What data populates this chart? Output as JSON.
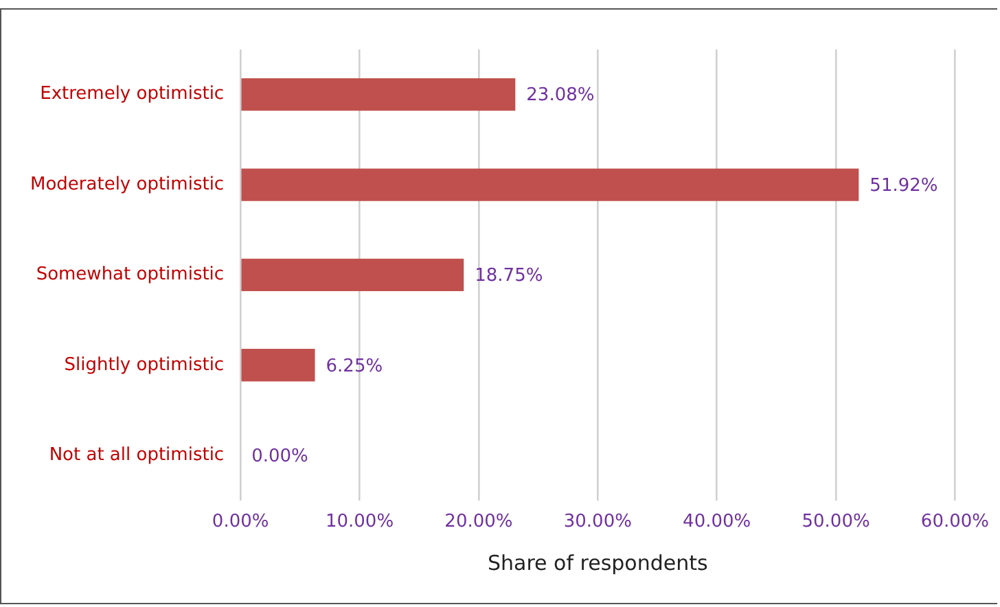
{
  "chart_data": {
    "type": "bar",
    "orientation": "horizontal",
    "xlabel": "Share of respondents",
    "categories": [
      "Extremely optimistic",
      "Moderately optimistic",
      "Somewhat optimistic",
      "Slightly optimistic",
      "Not at all optimistic"
    ],
    "values": [
      23.08,
      51.92,
      18.75,
      6.25,
      0
    ],
    "value_labels": [
      "23.08%",
      "51.92%",
      "18.75%",
      "6.25%",
      "0.00%"
    ],
    "color": "#c0504d",
    "xlim": [
      0,
      60
    ],
    "xticks": [
      {
        "value": 0,
        "label": "0.00%"
      },
      {
        "value": 10,
        "label": "10.00%"
      },
      {
        "value": 20,
        "label": "20.00%"
      },
      {
        "value": 30,
        "label": "30.00%"
      },
      {
        "value": 40,
        "label": "40.00%"
      },
      {
        "value": 50,
        "label": "50.00%"
      },
      {
        "value": 60,
        "label": "60.00%"
      }
    ],
    "grid": "x"
  }
}
